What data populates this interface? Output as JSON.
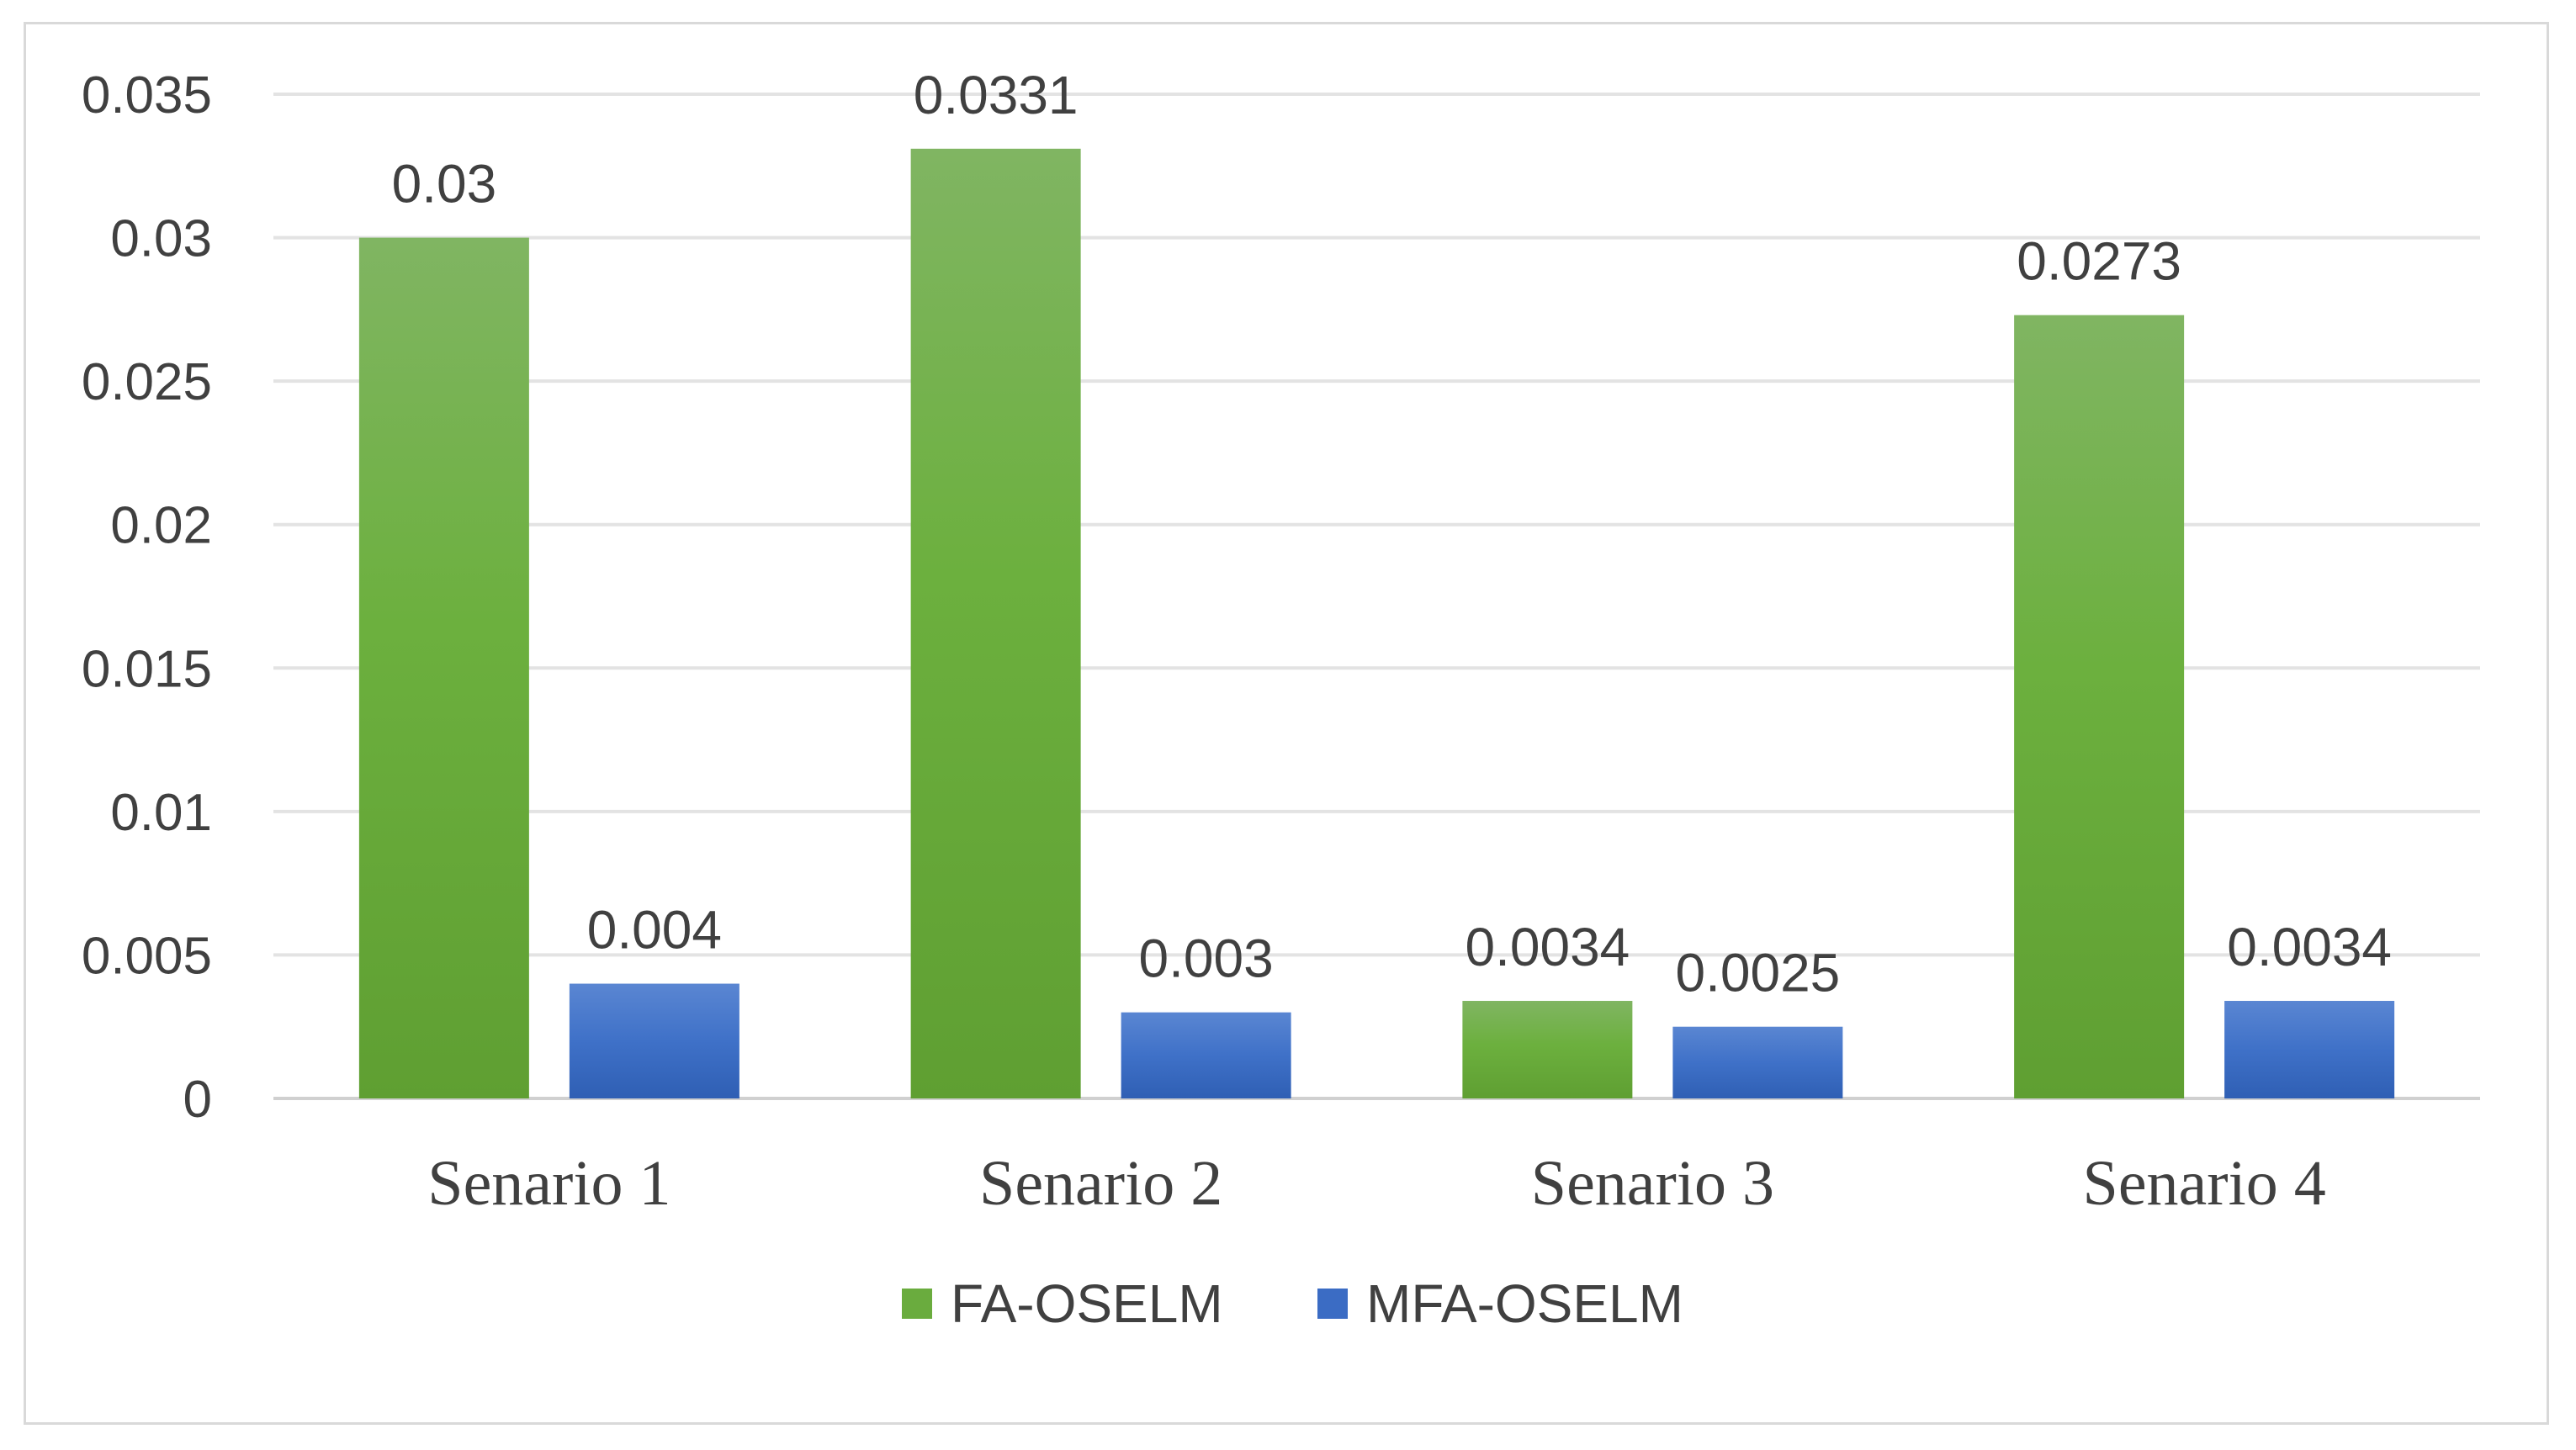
{
  "chart_data": {
    "type": "bar",
    "categories": [
      "Senario 1",
      "Senario 2",
      "Senario 3",
      "Senario 4"
    ],
    "series": [
      {
        "name": "FA-OSELM",
        "values": [
          0.03,
          0.0331,
          0.0034,
          0.0273
        ],
        "labels": [
          "0.03",
          "0.0331",
          "0.0034",
          "0.0273"
        ],
        "color": "#6aac3e"
      },
      {
        "name": "MFA-OSELM",
        "values": [
          0.004,
          0.003,
          0.0025,
          0.0034
        ],
        "labels": [
          "0.004",
          "0.003",
          "0.0025",
          "0.0034"
        ],
        "color": "#3b6cc4"
      }
    ],
    "ylim": [
      0,
      0.035
    ],
    "yticks": [
      0,
      0.005,
      0.01,
      0.015,
      0.02,
      0.025,
      0.03,
      0.035
    ],
    "ytick_labels": [
      "0",
      "0.005",
      "0.01",
      "0.015",
      "0.02",
      "0.025",
      "0.03",
      "0.035"
    ],
    "title": "",
    "xlabel": "",
    "ylabel": "",
    "grid": true,
    "legend_position": "bottom"
  }
}
